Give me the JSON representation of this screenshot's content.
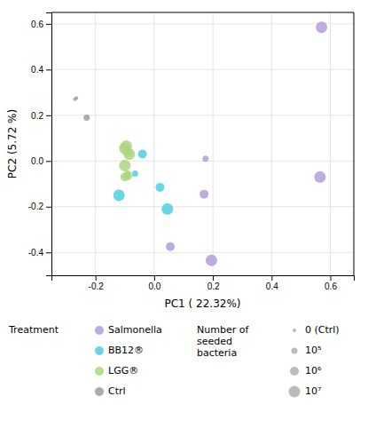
{
  "chart_data": {
    "type": "scatter",
    "xlabel": "PC1 ( 22.32%)",
    "ylabel": "PC2 (5.72 %)",
    "xlim": [
      -0.35,
      0.68
    ],
    "ylim": [
      -0.5,
      0.65
    ],
    "xticks": [
      -0.2,
      {
        "value": 0,
        "label": "0.0"
      },
      0.2,
      0.4,
      0.6
    ],
    "yticks": [
      -0.4,
      -0.2,
      {
        "value": 0,
        "label": "0.0"
      },
      0.2,
      0.4,
      0.6
    ],
    "grid": true,
    "legend": "bottom",
    "legend_title": "Treatment",
    "series": [
      {
        "name": "Salmonella",
        "color": "#b39ddb",
        "x": [
          0.57,
          0.565,
          0.175,
          0.17,
          0.055,
          0.195
        ],
        "values": [
          0.585,
          -0.07,
          0.01,
          -0.145,
          -0.375,
          -0.435
        ],
        "sizes": [
          7,
          7,
          5,
          6,
          6,
          7
        ]
      },
      {
        "name": "BB12®",
        "color": "#4dd0e1",
        "x": [
          -0.065,
          -0.04,
          0.02,
          0.045,
          -0.12
        ],
        "values": [
          -0.055,
          0.03,
          -0.115,
          -0.21,
          -0.15
        ],
        "sizes": [
          5,
          6,
          6,
          7,
          7
        ]
      },
      {
        "name": "LGG®",
        "color": "#aed581",
        "x": [
          -0.09,
          -0.09,
          -0.09,
          -0.085,
          -0.1,
          -0.1,
          -0.095,
          -0.1
        ],
        "values": [
          -0.055,
          -0.065,
          0.04,
          0.03,
          -0.02,
          0.055,
          0.065,
          -0.07
        ],
        "sizes": [
          5,
          6,
          6,
          7,
          7,
          7,
          7,
          6
        ]
      },
      {
        "name": "Ctrl",
        "color": "#9e9e9e",
        "x": [
          -0.27,
          -0.265,
          -0.23
        ],
        "values": [
          0.27,
          0.275,
          0.19
        ],
        "sizes": [
          4,
          4,
          5
        ]
      }
    ],
    "size_legend": {
      "title": "Number of\nseeded\nbacteria",
      "labels": [
        "0 (Ctrl)",
        "10⁵",
        "10⁶",
        "10⁷"
      ],
      "values": [
        4,
        5,
        6,
        7
      ]
    }
  }
}
